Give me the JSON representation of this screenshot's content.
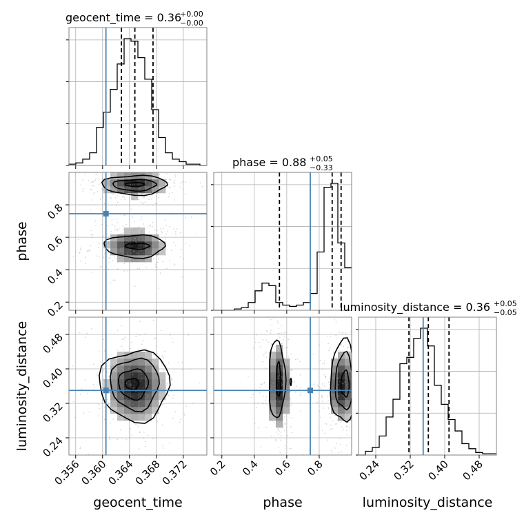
{
  "colors": {
    "truth": "#4682b4",
    "hist": "#000000",
    "grid": "#b0b0b0",
    "sample": "#9a9a9a"
  },
  "titles": {
    "geocent": {
      "main": "geocent_time = 0.36",
      "sup": "+0.00",
      "sub": "−0.00"
    },
    "phase": {
      "main": "phase = 0.88",
      "sup": "+0.05",
      "sub": "−0.33"
    },
    "lumdist": {
      "main": "luminosity_distance = 0.36",
      "sup": "+0.05",
      "sub": "−0.05"
    }
  },
  "axis_labels": {
    "geocent_time": "geocent_time",
    "phase": "phase",
    "luminosity_distance": "luminosity_distance"
  },
  "chart_data": {
    "type": "corner",
    "parameters": [
      "geocent_time",
      "phase",
      "luminosity_distance"
    ],
    "ranges": {
      "geocent_time": [
        0.355,
        0.3755
      ],
      "phase": [
        0.15,
        1.0
      ],
      "luminosity_distance": [
        0.2,
        0.52
      ]
    },
    "ticks": {
      "geocent_time": {
        "values": [
          0.356,
          0.36,
          0.364,
          0.368,
          0.372
        ],
        "labels": [
          "0.356",
          "0.360",
          "0.364",
          "0.368",
          "0.372"
        ]
      },
      "phase": {
        "values": [
          0.2,
          0.4,
          0.6,
          0.8
        ],
        "labels": [
          "0.2",
          "0.4",
          "0.6",
          "0.8"
        ]
      },
      "luminosity_distance": {
        "values": [
          0.24,
          0.32,
          0.4,
          0.48
        ],
        "labels": [
          "0.24",
          "0.32",
          "0.40",
          "0.48"
        ]
      }
    },
    "truths": {
      "geocent_time": 0.3605,
      "phase": 0.745,
      "luminosity_distance": 0.35
    },
    "quantiles": {
      "geocent_time": [
        0.3628,
        0.3648,
        0.3675
      ],
      "phase": [
        0.555,
        0.88,
        0.935
      ],
      "luminosity_distance": [
        0.317,
        0.362,
        0.41
      ]
    },
    "histograms": {
      "geocent_time": {
        "edges_start": 0.355,
        "bin_width": 0.001025,
        "counts": [
          1,
          2,
          5,
          10,
          30,
          42,
          60,
          80,
          100,
          98,
          85,
          68,
          44,
          22,
          10,
          5,
          3,
          1,
          1,
          0
        ]
      },
      "phase": {
        "edges_start": 0.15,
        "bin_width": 0.0425,
        "counts": [
          0,
          0,
          0,
          1,
          2,
          6,
          15,
          21,
          19,
          6,
          4,
          3,
          4,
          6,
          13,
          45,
          95,
          98,
          52,
          33
        ]
      },
      "luminosity_distance": {
        "edges_start": 0.2,
        "bin_width": 0.016,
        "counts": [
          0,
          3,
          6,
          15,
          30,
          44,
          72,
          77,
          92,
          100,
          86,
          55,
          40,
          28,
          19,
          9,
          5,
          2,
          1,
          1
        ]
      }
    },
    "grid": true
  }
}
